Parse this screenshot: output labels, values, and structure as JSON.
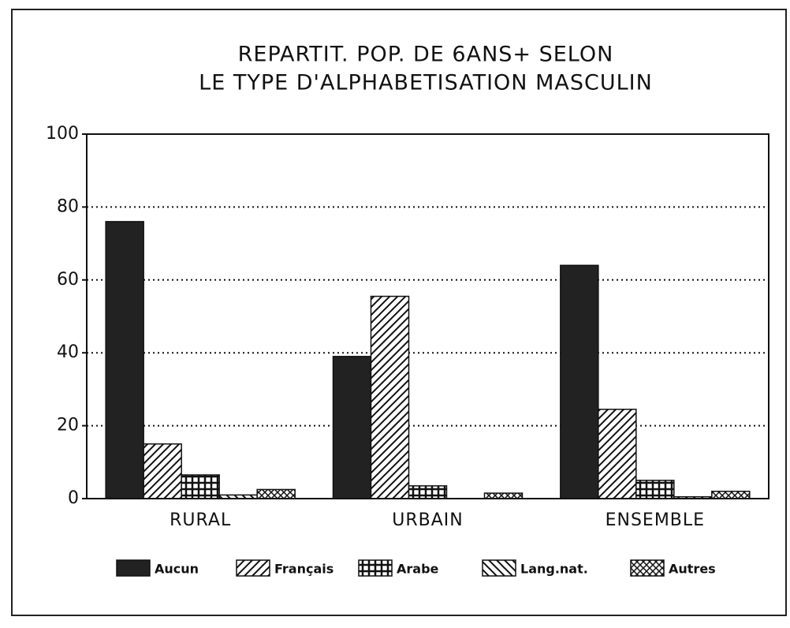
{
  "chart_data": {
    "type": "bar",
    "title": [
      "REPARTIT. POP. DE 6ANS+ SELON",
      "LE TYPE D'ALPHABETISATION MASCULIN"
    ],
    "categories": [
      "RURAL",
      "URBAIN",
      "ENSEMBLE"
    ],
    "series": [
      {
        "name": "Aucun",
        "color": "#222222",
        "pattern": "solid",
        "values": [
          76,
          39,
          64
        ]
      },
      {
        "name": "Français",
        "color": "#111111",
        "pattern": "diagonal",
        "values": [
          15,
          55.5,
          24.5
        ]
      },
      {
        "name": "Arabe",
        "color": "#111111",
        "pattern": "grid",
        "values": [
          6.5,
          3.5,
          5
        ]
      },
      {
        "name": "Lang.nat.",
        "color": "#111111",
        "pattern": "back-diagonal",
        "values": [
          1,
          0,
          0.5
        ]
      },
      {
        "name": "Autres",
        "color": "#111111",
        "pattern": "crosshatch",
        "values": [
          2.5,
          1.5,
          2
        ]
      }
    ],
    "ylim": [
      0,
      100
    ],
    "yticks": [
      0,
      20,
      40,
      60,
      80,
      100
    ],
    "grid": true
  }
}
